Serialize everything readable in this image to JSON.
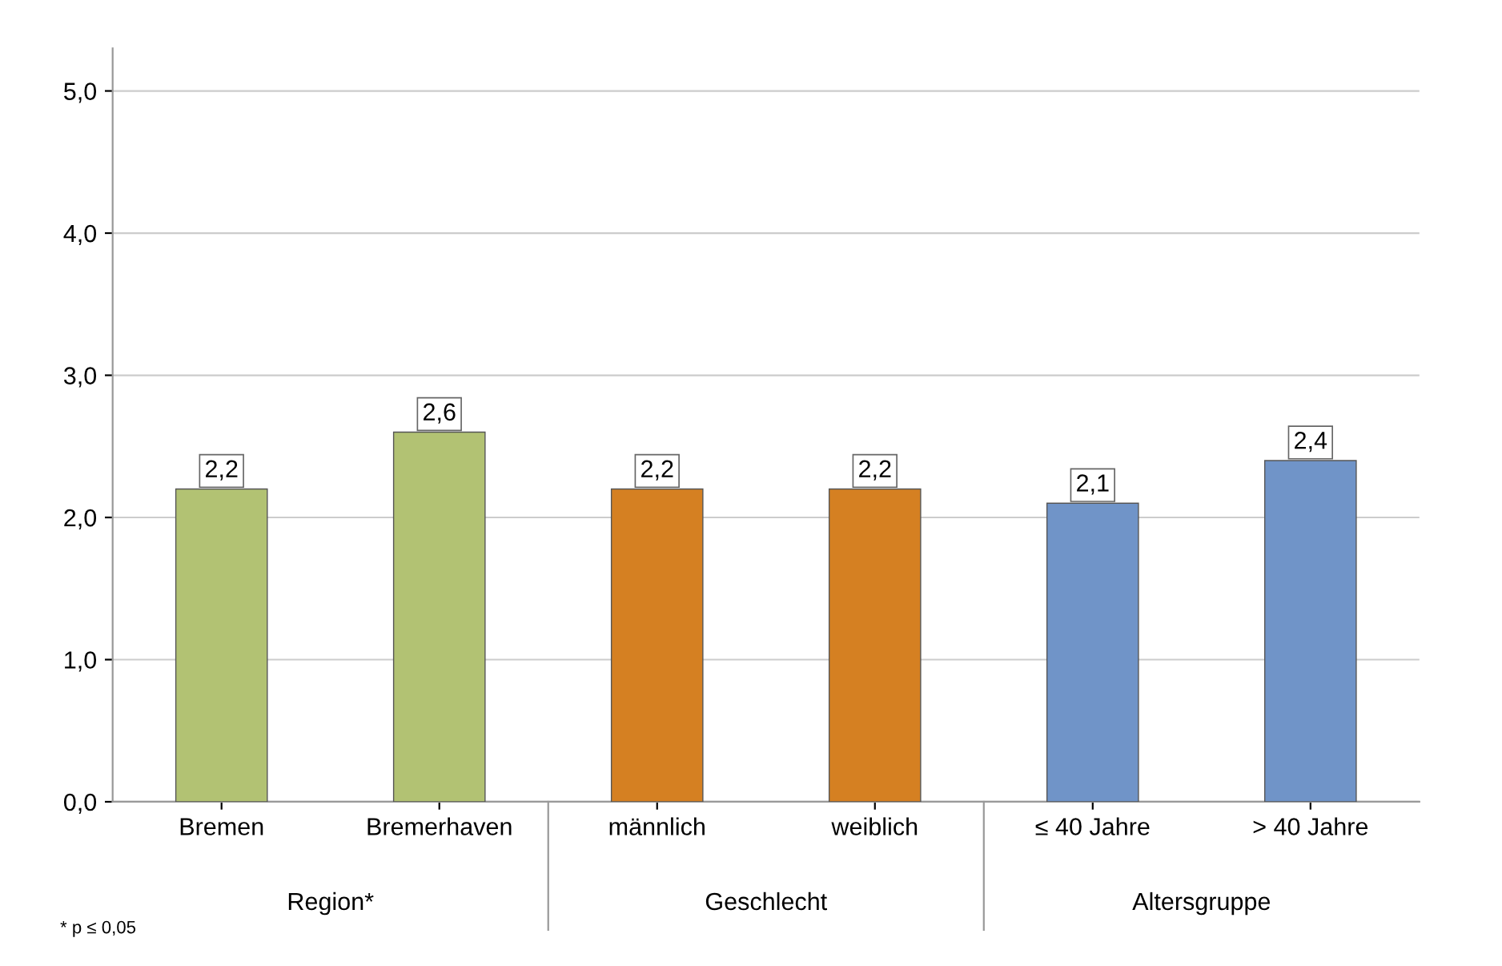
{
  "chart_data": {
    "type": "bar",
    "categories": [
      "Bremen",
      "Bremerhaven",
      "männlich",
      "weiblich",
      "≤ 40 Jahre",
      "> 40 Jahre"
    ],
    "values": [
      2.2,
      2.6,
      2.2,
      2.2,
      2.1,
      2.4
    ],
    "colors": [
      "#b2c273",
      "#b2c273",
      "#d58022",
      "#d58022",
      "#7094c8",
      "#7094c8"
    ],
    "value_labels": [
      "2,2",
      "2,6",
      "2,2",
      "2,2",
      "2,1",
      "2,4"
    ],
    "ylim": [
      0,
      5.3
    ],
    "yticks": [
      {
        "value": 0,
        "label": "0,0"
      },
      {
        "value": 1,
        "label": "1,0"
      },
      {
        "value": 2,
        "label": "2,0"
      },
      {
        "value": 3,
        "label": "3,0"
      },
      {
        "value": 4,
        "label": "4,0"
      },
      {
        "value": 5,
        "label": "5,0"
      }
    ],
    "grid": "y",
    "annotations": [
      "Region*",
      "Geschlecht",
      "Altersgruppe",
      "* p ≤ 0,05"
    ]
  }
}
